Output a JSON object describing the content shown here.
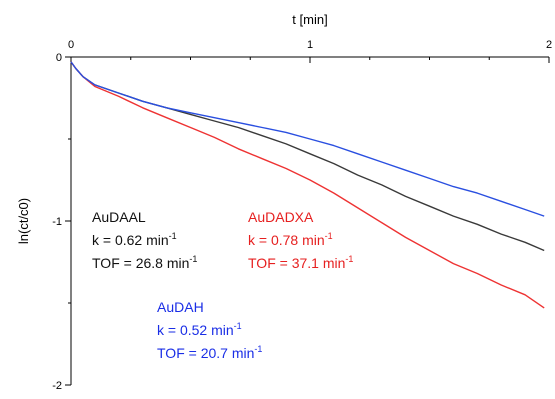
{
  "chart_data": {
    "type": "line",
    "title": "",
    "xlabel": "t [min]",
    "ylabel": "ln(ct/c0)",
    "x_axis_position": "top",
    "xlim": [
      0,
      2
    ],
    "ylim": [
      -2,
      0
    ],
    "x_ticks": [
      "0",
      "1",
      "2"
    ],
    "y_ticks": [
      "0",
      "-1",
      "-2"
    ],
    "grid": false,
    "series": [
      {
        "name": "AuDAAL",
        "color": "#3a3a3a",
        "points": [
          [
            0,
            -0.03
          ],
          [
            0.02,
            -0.07
          ],
          [
            0.05,
            -0.12
          ],
          [
            0.1,
            -0.17
          ],
          [
            0.2,
            -0.22
          ],
          [
            0.3,
            -0.27
          ],
          [
            0.4,
            -0.31
          ],
          [
            0.5,
            -0.35
          ],
          [
            0.6,
            -0.39
          ],
          [
            0.7,
            -0.43
          ],
          [
            0.8,
            -0.48
          ],
          [
            0.9,
            -0.53
          ],
          [
            1.0,
            -0.59
          ],
          [
            1.1,
            -0.65
          ],
          [
            1.2,
            -0.72
          ],
          [
            1.3,
            -0.78
          ],
          [
            1.4,
            -0.85
          ],
          [
            1.5,
            -0.91
          ],
          [
            1.6,
            -0.97
          ],
          [
            1.7,
            -1.02
          ],
          [
            1.8,
            -1.08
          ],
          [
            1.9,
            -1.13
          ],
          [
            1.98,
            -1.18
          ]
        ]
      },
      {
        "name": "AuDADXA",
        "color": "#ee3333",
        "points": [
          [
            0,
            -0.03
          ],
          [
            0.02,
            -0.07
          ],
          [
            0.05,
            -0.12
          ],
          [
            0.1,
            -0.18
          ],
          [
            0.2,
            -0.24
          ],
          [
            0.3,
            -0.31
          ],
          [
            0.4,
            -0.37
          ],
          [
            0.5,
            -0.43
          ],
          [
            0.6,
            -0.49
          ],
          [
            0.7,
            -0.56
          ],
          [
            0.8,
            -0.62
          ],
          [
            0.9,
            -0.68
          ],
          [
            1.0,
            -0.75
          ],
          [
            1.1,
            -0.83
          ],
          [
            1.2,
            -0.92
          ],
          [
            1.3,
            -1.01
          ],
          [
            1.4,
            -1.1
          ],
          [
            1.5,
            -1.18
          ],
          [
            1.6,
            -1.26
          ],
          [
            1.7,
            -1.32
          ],
          [
            1.8,
            -1.39
          ],
          [
            1.9,
            -1.45
          ],
          [
            1.98,
            -1.53
          ]
        ]
      },
      {
        "name": "AuDAH",
        "color": "#2a4fe0",
        "points": [
          [
            0,
            -0.03
          ],
          [
            0.02,
            -0.07
          ],
          [
            0.05,
            -0.12
          ],
          [
            0.1,
            -0.17
          ],
          [
            0.2,
            -0.22
          ],
          [
            0.3,
            -0.27
          ],
          [
            0.4,
            -0.31
          ],
          [
            0.5,
            -0.34
          ],
          [
            0.6,
            -0.37
          ],
          [
            0.7,
            -0.4
          ],
          [
            0.8,
            -0.43
          ],
          [
            0.9,
            -0.46
          ],
          [
            1.0,
            -0.5
          ],
          [
            1.1,
            -0.54
          ],
          [
            1.2,
            -0.59
          ],
          [
            1.3,
            -0.64
          ],
          [
            1.4,
            -0.69
          ],
          [
            1.5,
            -0.74
          ],
          [
            1.6,
            -0.79
          ],
          [
            1.7,
            -0.83
          ],
          [
            1.8,
            -0.88
          ],
          [
            1.9,
            -0.93
          ],
          [
            1.98,
            -0.97
          ]
        ]
      }
    ],
    "annotations": [
      {
        "series": "AuDAAL",
        "color": "#111111",
        "name": "AuDAAL",
        "k_prefix": "k = 0.62 min",
        "tof_prefix": "TOF = 26.8 min",
        "exp": "-1"
      },
      {
        "series": "AuDADXA",
        "color": "#e62020",
        "name": "AuDADXA",
        "k_prefix": "k = 0.78 min",
        "tof_prefix": "TOF = 37.1 min",
        "exp": "-1"
      },
      {
        "series": "AuDAH",
        "color": "#1a2ee6",
        "name": "AuDAH",
        "k_prefix": "k = 0.52 min",
        "tof_prefix": "TOF = 20.7 min",
        "exp": "-1"
      }
    ]
  }
}
